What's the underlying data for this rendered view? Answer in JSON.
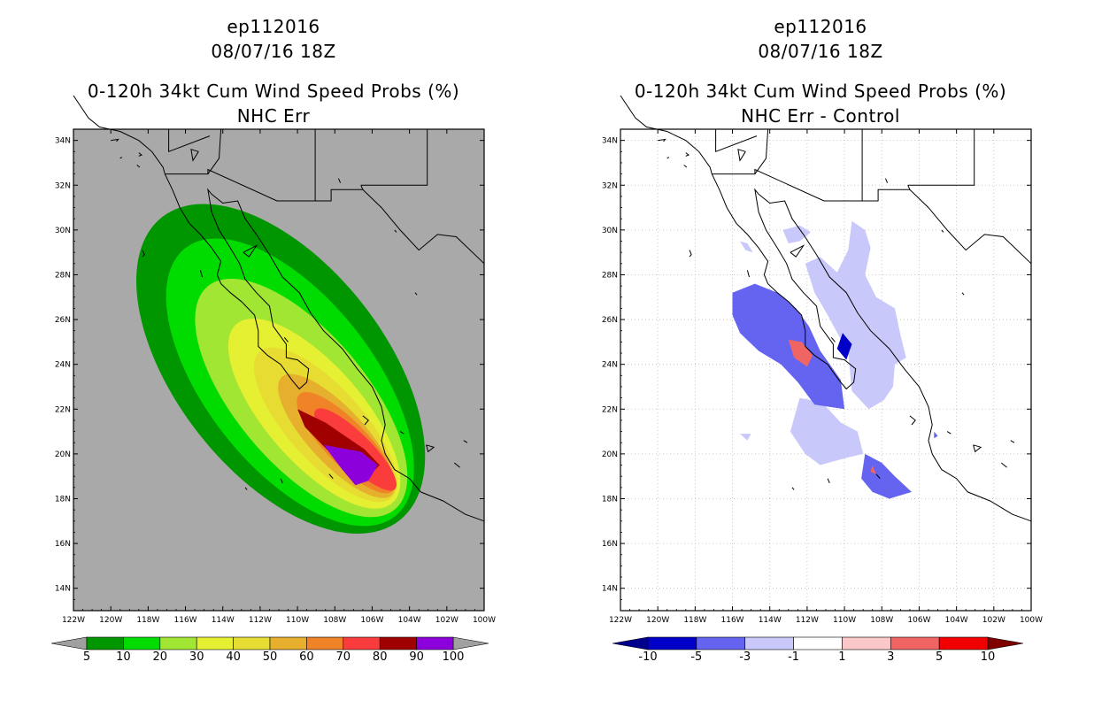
{
  "left": {
    "storm_id": "ep112016",
    "datetime": "08/07/16 18Z",
    "title": "0-120h 34kt Cum Wind Speed Probs (%)",
    "subtitle": "NHC Err",
    "colorbar": {
      "labels": [
        "5",
        "10",
        "20",
        "30",
        "40",
        "50",
        "60",
        "70",
        "80",
        "90",
        "100"
      ],
      "colors": [
        "#009600",
        "#00dc00",
        "#a0e632",
        "#e6f032",
        "#e6dc32",
        "#e6af2d",
        "#f08228",
        "#fa3c3c",
        "#a00000",
        "#8c00dc"
      ],
      "under_color": "#a0a0a0",
      "over_color": "#a0a0a0"
    }
  },
  "right": {
    "storm_id": "ep112016",
    "datetime": "08/07/16 18Z",
    "title": "0-120h 34kt Cum Wind Speed Probs (%)",
    "subtitle": "NHC Err - Control",
    "colorbar": {
      "labels": [
        "-10",
        "-5",
        "-3",
        "-1",
        "1",
        "3",
        "5",
        "10"
      ],
      "colors": [
        "#0000c8",
        "#6464f0",
        "#c8c8fa",
        "#ffffff",
        "#fac8c8",
        "#f06464",
        "#f00000"
      ],
      "under_color": "#00008c",
      "over_color": "#800000"
    }
  },
  "axes": {
    "lon_labels": [
      "122W",
      "120W",
      "118W",
      "116W",
      "114W",
      "112W",
      "110W",
      "108W",
      "106W",
      "104W",
      "102W",
      "100W"
    ],
    "lat_labels": [
      "14N",
      "16N",
      "18N",
      "20N",
      "22N",
      "24N",
      "26N",
      "28N",
      "30N",
      "32N",
      "34N"
    ],
    "lon_range": [
      -122,
      -100
    ],
    "lat_range": [
      13,
      34.5
    ]
  },
  "map_colors": {
    "left_background": "#a9a9a9",
    "right_background": "#ffffff",
    "coastline": "#000000"
  }
}
